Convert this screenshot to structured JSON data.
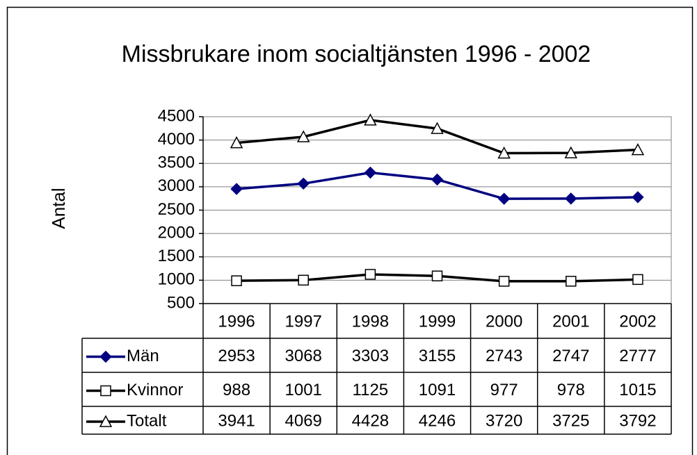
{
  "chart_data": {
    "type": "line",
    "title": "Missbrukare inom socialtjänsten 1996 - 2002",
    "y_label": "Antal",
    "categories": [
      "1996",
      "1997",
      "1998",
      "1999",
      "2000",
      "2001",
      "2002"
    ],
    "series": [
      {
        "name": "Män",
        "color": "#000080",
        "marker": "diamond",
        "values": [
          2953,
          3068,
          3303,
          3155,
          2743,
          2747,
          2777
        ]
      },
      {
        "name": "Kvinnor",
        "color": "#000000",
        "marker": "square",
        "values": [
          988,
          1001,
          1125,
          1091,
          977,
          978,
          1015
        ]
      },
      {
        "name": "Totalt",
        "color": "#000000",
        "marker": "triangle",
        "values": [
          3941,
          4069,
          4428,
          4246,
          3720,
          3725,
          3792
        ]
      }
    ],
    "ylim": [
      500,
      4500
    ],
    "yticks": [
      500,
      1000,
      1500,
      2000,
      2500,
      3000,
      3500,
      4000,
      4500
    ],
    "grid": true
  }
}
